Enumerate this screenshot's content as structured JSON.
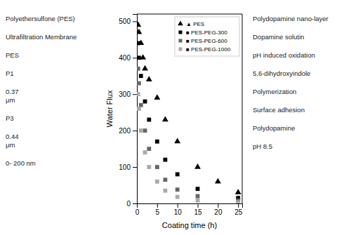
{
  "chart_data": {
    "type": "scatter",
    "xlabel": "Coating time (h)",
    "ylabel": "Water Flux",
    "xlim": [
      0,
      26
    ],
    "ylim": [
      0,
      520
    ],
    "xticks": [
      0,
      5,
      10,
      15,
      20,
      25
    ],
    "yticks": [
      0,
      100,
      200,
      300,
      400,
      500
    ],
    "grid": false,
    "legend": "upper-right",
    "series": [
      {
        "name": "▲ PES",
        "color": "#000000",
        "marker": "triangle",
        "x": [
          0.3,
          0.5,
          1.0,
          1.5,
          2.0,
          3.0,
          5.0,
          7.0,
          10.0,
          15.0,
          20.0,
          25.0
        ],
        "values": [
          490,
          470,
          440,
          400,
          370,
          340,
          290,
          230,
          170,
          100,
          60,
          30
        ]
      },
      {
        "name": "■ PES-PEG-300",
        "color": "#000000",
        "marker": "square",
        "x": [
          0.3,
          0.5,
          1.0,
          2.0,
          3.0,
          5.0,
          7.0,
          10.0,
          15.0,
          25.0
        ],
        "values": [
          440,
          400,
          350,
          280,
          230,
          170,
          120,
          80,
          40,
          15
        ]
      },
      {
        "name": "■ PES-PEG-600",
        "color": "#666666",
        "marker": "square",
        "x": [
          0.3,
          0.5,
          1.0,
          2.0,
          3.0,
          5.0,
          7.0,
          10.0,
          15.0,
          25.0
        ],
        "values": [
          370,
          330,
          270,
          200,
          150,
          100,
          65,
          38,
          20,
          8
        ]
      },
      {
        "name": "■ PES-PEG-1000",
        "color": "#aaaaaa",
        "marker": "square",
        "x": [
          0.3,
          0.5,
          1.0,
          2.0,
          3.0,
          5.0,
          7.0,
          10.0,
          15.0,
          25.0
        ],
        "values": [
          300,
          260,
          200,
          140,
          100,
          60,
          35,
          18,
          8,
          3
        ]
      }
    ],
    "annotations": [
      "Polyethersulfone (PES)",
      "Ultrafiltration Membrane",
      "PES",
      "P1",
      "0.37\nμm",
      "P3",
      "0.44\nμm",
      "0- 200 nm",
      "Polydopamine nano-layer",
      "Dopamine solutin",
      "pH induced oxidation",
      "5,6-dihydroxyindole",
      "Polymerization",
      "Surface adhesion",
      "Polydopamine",
      "pH 8.5"
    ]
  }
}
